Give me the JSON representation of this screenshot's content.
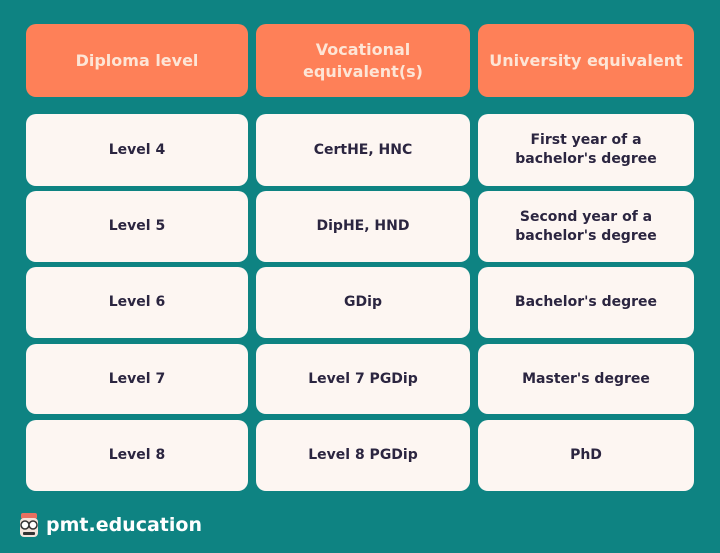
{
  "headers": [
    "Diploma level",
    "Vocational equivalent(s)",
    "University equivalent"
  ],
  "rows": [
    [
      "Level 4",
      "CertHE, HNC",
      "First year of a bachelor's degree"
    ],
    [
      "Level 5",
      "DipHE, HND",
      "Second year of a bachelor's degree"
    ],
    [
      "Level 6",
      "GDip",
      "Bachelor's degree"
    ],
    [
      "Level 7",
      "Level 7 PGDip",
      "Master's degree"
    ],
    [
      "Level 8",
      "Level 8 PGDip",
      "PhD"
    ]
  ],
  "footer": {
    "brand": "pmt.education",
    "logo_icon": "owl-logo-icon"
  },
  "colors": {
    "background": "#0e8382",
    "header": "#fe8058",
    "header_text": "#fde5d6",
    "cell": "#fdf6f2",
    "cell_text": "#2b2540"
  }
}
